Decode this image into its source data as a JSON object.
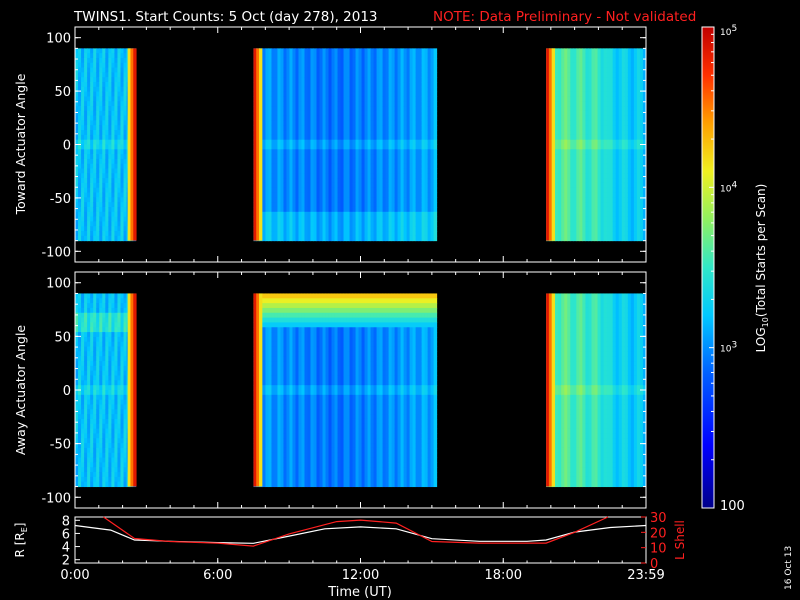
{
  "title": {
    "main": "TWINS1. Start Counts:  5 Oct (day 278), 2013",
    "note": "NOTE: Data Preliminary - Not validated",
    "note_color": "#ff2020"
  },
  "stamp": "16 Oct 13",
  "colors": {
    "axis": "#ffffff",
    "background": "#000000",
    "r_line": "#ffffff",
    "l_line": "#ff2020"
  },
  "chart_data": [
    {
      "id": "toward",
      "type": "heatmap",
      "ylabel": "Toward Actuator Angle",
      "ylim": [
        -110,
        110
      ],
      "yticks": [
        100,
        50,
        0,
        -50,
        -100
      ],
      "xlim": [
        0,
        24
      ],
      "data_ylim": [
        -90,
        90
      ],
      "segments": [
        {
          "start": 0.0,
          "end": 2.55,
          "leading_edge": "none",
          "trailing_edge": "hot"
        },
        {
          "start": 7.5,
          "end": 15.2,
          "leading_edge": "hot",
          "trailing_edge": "none"
        },
        {
          "start": 19.8,
          "end": 24.0,
          "leading_edge": "hot",
          "trailing_edge": "none"
        }
      ],
      "grid": false
    },
    {
      "id": "away",
      "type": "heatmap",
      "ylabel": "Away Actuator Angle",
      "ylim": [
        -110,
        110
      ],
      "yticks": [
        100,
        50,
        0,
        -50,
        -100
      ],
      "xlim": [
        0,
        24
      ],
      "data_ylim": [
        -90,
        90
      ],
      "segments": [
        {
          "start": 0.0,
          "end": 2.55,
          "leading_edge": "none",
          "trailing_edge": "hot"
        },
        {
          "start": 7.5,
          "end": 15.2,
          "leading_edge": "hot",
          "trailing_edge": "none"
        },
        {
          "start": 19.8,
          "end": 24.0,
          "leading_edge": "hot",
          "trailing_edge": "none"
        }
      ],
      "grid": false
    },
    {
      "id": "orbit",
      "type": "line",
      "xlabel": "Time (UT)",
      "xticks": [
        {
          "label": "0:00",
          "value": 0
        },
        {
          "label": "6:00",
          "value": 6
        },
        {
          "label": "12:00",
          "value": 12
        },
        {
          "label": "18:00",
          "value": 18
        },
        {
          "label": "23:59",
          "value": 24
        }
      ],
      "xlim": [
        0,
        24
      ],
      "left_axis": {
        "label": "R [R",
        "label_sub": "E",
        "label_close": "]",
        "ylim": [
          1.5,
          8.5
        ],
        "ticks": [
          8,
          6,
          4,
          2
        ]
      },
      "right_axis": {
        "label": "L Shell",
        "ylim": [
          0,
          30
        ],
        "ticks": [
          30,
          20,
          10,
          0
        ]
      },
      "series": [
        {
          "name": "R",
          "axis": "left",
          "x": [
            0,
            1.5,
            2.5,
            4,
            6,
            7.5,
            9,
            10.5,
            12,
            13.5,
            15,
            17,
            19,
            19.8,
            21,
            22.5,
            24
          ],
          "y": [
            7.2,
            6.5,
            5.0,
            4.8,
            4.6,
            4.5,
            5.6,
            6.7,
            7.0,
            6.7,
            5.2,
            4.8,
            4.8,
            5.0,
            6.2,
            6.9,
            7.2
          ]
        },
        {
          "name": "L Shell",
          "axis": "right",
          "x": [
            1.2,
            2.5,
            4,
            6,
            7.5,
            9,
            11,
            12,
            13.5,
            15,
            17,
            19,
            19.8,
            21,
            22.4
          ],
          "y": [
            30,
            16,
            14,
            13,
            11,
            19,
            27,
            28,
            26,
            14,
            13,
            13,
            13,
            20,
            30
          ]
        }
      ]
    }
  ],
  "colorbar": {
    "label": "LOG",
    "label_sub": "10",
    "label_rest": "(Total Starts per Scan)",
    "ticks": [
      {
        "label": "10",
        "sup": "5",
        "value": 5
      },
      {
        "label": "10",
        "sup": "4",
        "value": 4
      },
      {
        "label": "10",
        "sup": "3",
        "value": 3
      },
      {
        "label": "100",
        "sup": "",
        "value": 2
      }
    ],
    "range": [
      2,
      5
    ]
  }
}
